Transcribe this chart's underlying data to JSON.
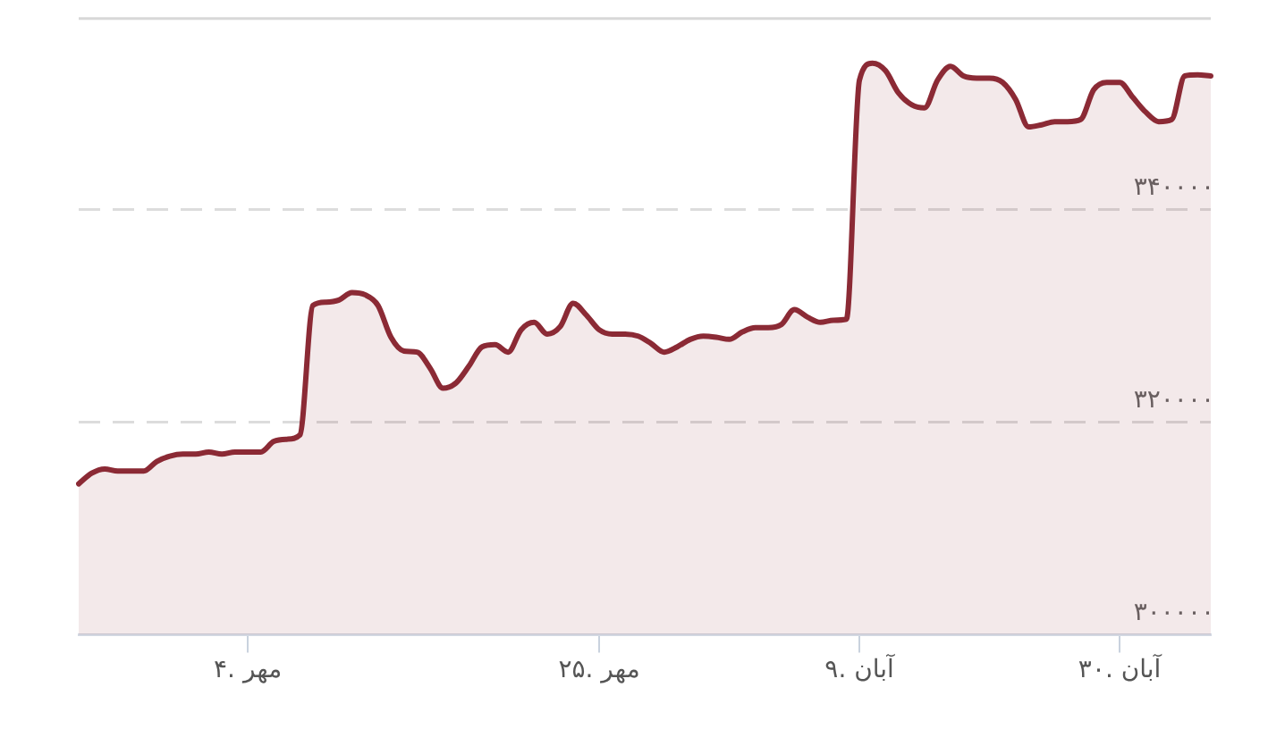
{
  "chart_data": {
    "type": "area",
    "categories": [
      null,
      null,
      null,
      null,
      null,
      null,
      null,
      null,
      null,
      null,
      null,
      null,
      null,
      "۴. مهر",
      null,
      null,
      null,
      null,
      null,
      null,
      null,
      null,
      null,
      null,
      null,
      null,
      null,
      null,
      null,
      null,
      null,
      null,
      null,
      null,
      null,
      null,
      null,
      null,
      null,
      null,
      "۲۵. مهر",
      null,
      null,
      null,
      null,
      null,
      null,
      null,
      null,
      null,
      null,
      null,
      null,
      null,
      null,
      null,
      null,
      null,
      null,
      null,
      "۹. آبان",
      null,
      null,
      null,
      null,
      null,
      null,
      null,
      null,
      null,
      null,
      null,
      null,
      null,
      null,
      null,
      null,
      null,
      null,
      null,
      "۳۰. آبان",
      null,
      null,
      null,
      null,
      null,
      null,
      null
    ],
    "series": [
      {
        "color": "#8b2a35",
        "values": [
          314200,
          315200,
          315600,
          315400,
          315400,
          315400,
          316300,
          316800,
          317000,
          317000,
          317200,
          317000,
          317200,
          317200,
          317200,
          318200,
          318400,
          318800,
          331000,
          331300,
          331500,
          332200,
          332000,
          331000,
          328000,
          326700,
          326600,
          325100,
          323200,
          323700,
          325300,
          327100,
          327300,
          326600,
          328700,
          329400,
          328300,
          329000,
          331200,
          330100,
          328700,
          328300,
          328300,
          328100,
          327400,
          326600,
          327100,
          327800,
          328100,
          328000,
          327800,
          328500,
          328900,
          328900,
          329200,
          330600,
          329900,
          329400,
          329600,
          329700,
          352200,
          353800,
          353100,
          351000,
          349900,
          349600,
          352200,
          353500,
          352600,
          352400,
          352400,
          352000,
          350400,
          347800,
          348000,
          348300,
          348300,
          348500,
          351300,
          352000,
          352000,
          350600,
          349200,
          348300,
          348500,
          352600,
          352700,
          352600
        ]
      }
    ],
    "ylim": [
      300000,
      358000
    ],
    "yticks": [
      {
        "value": 300000,
        "label": "۳۰۰۰۰۰"
      },
      {
        "value": 320000,
        "label": "۳۲۰۰۰۰"
      },
      {
        "value": 340000,
        "label": "۳۴۰۰۰۰"
      }
    ],
    "grid": "y",
    "legend": false,
    "marker": "none",
    "line_style": "solid"
  }
}
